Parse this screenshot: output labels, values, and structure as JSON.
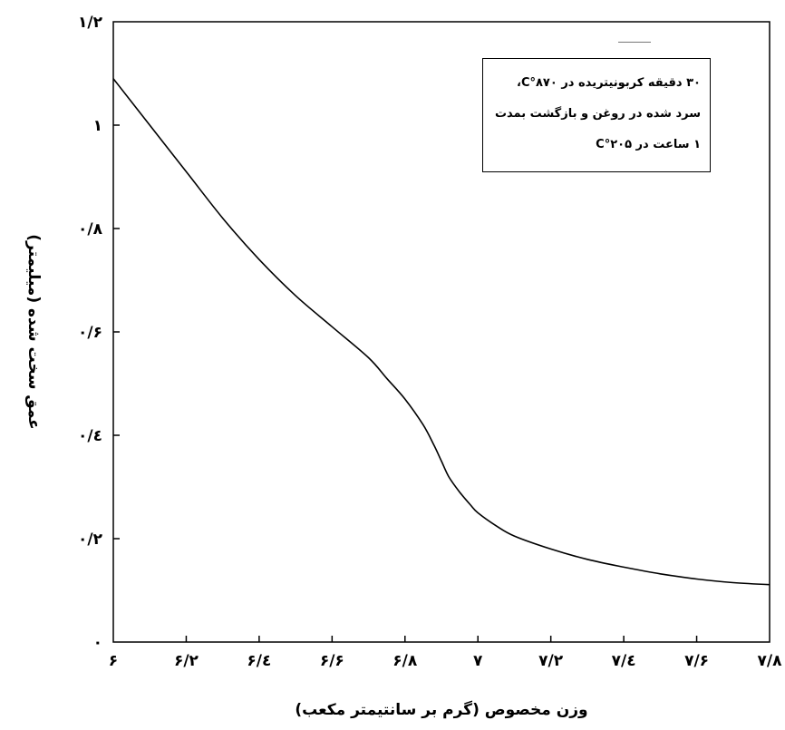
{
  "chart_data": {
    "type": "line",
    "title": "",
    "xlabel": "وزن مخصوص (گرم بر سانتیمتر مکعب)",
    "ylabel": "عمق سخت شده (میلیمتر)",
    "xlim": [
      6.0,
      7.8
    ],
    "ylim": [
      0.0,
      1.2
    ],
    "xticks": [
      6.0,
      6.2,
      6.4,
      6.6,
      6.8,
      7.0,
      7.2,
      7.4,
      7.6,
      7.8
    ],
    "xtick_labels": [
      "۶",
      "۶/۲",
      "۶/٤",
      "۶/۶",
      "۶/۸",
      "۷",
      "۷/۲",
      "۷/٤",
      "۷/۶",
      "۷/۸"
    ],
    "yticks": [
      0.0,
      0.2,
      0.4,
      0.6,
      0.8,
      1.0,
      1.2
    ],
    "ytick_labels": [
      "۰",
      "۰/۲",
      "۰/٤",
      "۰/۶",
      "۰/۸",
      "۱",
      "۱/۲"
    ],
    "grid": false,
    "legend_position": "top-right",
    "annotation": [
      "۳۰ دقیقه کربونیتریده در ۸۷۰°C،",
      "سرد شده در روغن و بازگشت بمدت",
      "۱ ساعت در ۲۰۵°C"
    ],
    "series": [
      {
        "x": [
          6.0,
          6.1,
          6.2,
          6.3,
          6.4,
          6.5,
          6.6,
          6.7,
          6.75,
          6.8,
          6.85,
          6.88,
          6.9,
          6.92,
          6.95,
          6.98,
          7.0,
          7.05,
          7.1,
          7.2,
          7.3,
          7.4,
          7.5,
          7.6,
          7.7,
          7.8
        ],
        "y": [
          1.09,
          1.0,
          0.91,
          0.82,
          0.74,
          0.67,
          0.61,
          0.55,
          0.51,
          0.47,
          0.42,
          0.38,
          0.35,
          0.32,
          0.29,
          0.265,
          0.25,
          0.225,
          0.205,
          0.18,
          0.16,
          0.145,
          0.132,
          0.122,
          0.115,
          0.111
        ]
      }
    ]
  }
}
